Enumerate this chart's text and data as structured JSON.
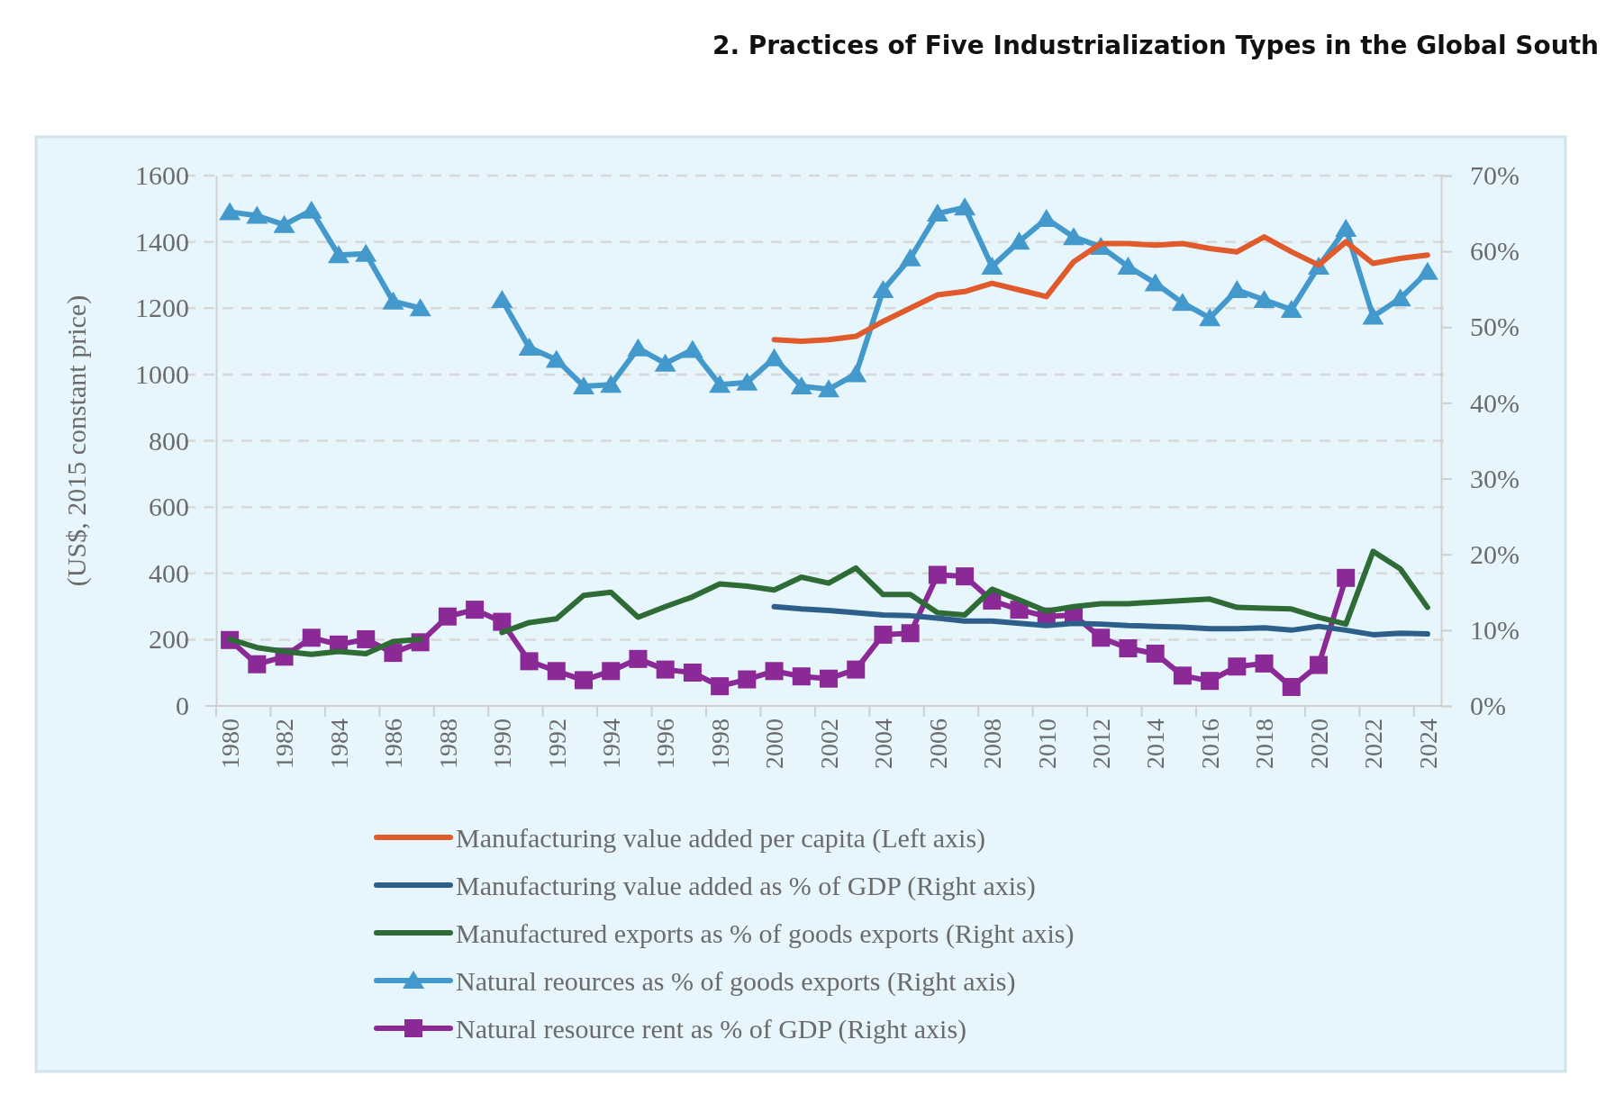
{
  "chart_data": {
    "type": "line",
    "title": "2. Practices of Five Industrialization Types in the Global South",
    "ylabel": "(US$, 2015 constant price)",
    "categories": [
      "1980",
      null,
      "1982",
      null,
      "1984",
      null,
      "1986",
      null,
      "1988",
      null,
      "1990",
      null,
      "1992",
      null,
      "1994",
      null,
      "1996",
      null,
      "1998",
      null,
      "2000",
      null,
      "2002",
      null,
      "2004",
      null,
      "2006",
      null,
      "2008",
      null,
      "2010",
      null,
      "2012",
      null,
      "2014",
      null,
      "2016",
      null,
      "2018",
      null,
      "2020",
      null,
      "2022",
      null,
      "2024"
    ],
    "ylim": [
      0,
      1600
    ],
    "yticks": [
      0,
      200,
      400,
      600,
      800,
      1000,
      1200,
      1400,
      1600
    ],
    "y2lim": [
      0,
      70
    ],
    "y2ticks": [
      {
        "value": 0,
        "label": "0%"
      },
      {
        "value": 10,
        "label": "10%"
      },
      {
        "value": 20,
        "label": "20%"
      },
      {
        "value": 30,
        "label": "30%"
      },
      {
        "value": 40,
        "label": "40%"
      },
      {
        "value": 50,
        "label": "50%"
      },
      {
        "value": 60,
        "label": "60%"
      },
      {
        "value": 70,
        "label": "70%"
      }
    ],
    "grid": "y",
    "legend": "bottom",
    "series": [
      {
        "name": "Manufacturing value added per capita (Left axis)",
        "color": "#e05a2b",
        "marker": "none",
        "values": [
          null,
          null,
          null,
          null,
          null,
          null,
          null,
          null,
          null,
          null,
          null,
          null,
          null,
          null,
          null,
          null,
          null,
          null,
          null,
          null,
          1105,
          1100,
          1105,
          1115,
          1160,
          1200,
          1240,
          1250,
          1275,
          1255,
          1235,
          1340,
          1395,
          1395,
          1390,
          1395,
          1380,
          1370,
          1415,
          1370,
          1330,
          1400,
          1335,
          1350,
          1360
        ]
      },
      {
        "name": "Manufacturing value added as % of GDP (Right axis)",
        "color": "#2e5f8a",
        "marker": "none",
        "axis": "y2",
        "values": [
          null,
          null,
          null,
          null,
          null,
          null,
          null,
          null,
          null,
          null,
          null,
          null,
          null,
          null,
          null,
          null,
          null,
          null,
          null,
          null,
          13.1,
          12.8,
          12.6,
          12.3,
          12.0,
          11.9,
          11.6,
          11.2,
          11.2,
          10.9,
          10.6,
          10.9,
          10.8,
          10.6,
          10.5,
          10.4,
          10.2,
          10.2,
          10.3,
          10.0,
          10.5,
          10.0,
          9.4,
          9.6,
          9.5
        ]
      },
      {
        "name": "Manufactured exports as % of goods exports (Right axis)",
        "color": "#2e6b35",
        "marker": "none",
        "axis": "y2",
        "values": [
          8.8,
          7.7,
          7.2,
          6.8,
          7.2,
          6.9,
          8.5,
          8.8,
          null,
          null,
          9.7,
          11.0,
          11.5,
          14.6,
          15.0,
          11.7,
          13.1,
          14.4,
          16.1,
          15.8,
          15.3,
          17.0,
          16.2,
          18.2,
          14.7,
          14.7,
          12.3,
          12.0,
          15.4,
          14.0,
          12.5,
          13.1,
          13.5,
          13.5,
          13.7,
          13.9,
          14.1,
          13.0,
          12.9,
          12.8,
          11.7,
          10.8,
          20.4,
          18.1,
          13.0
        ]
      },
      {
        "name": "Natural reources as % of goods exports (Right axis)",
        "color": "#4499cc",
        "marker": "triangle",
        "axis": "y2",
        "values": [
          65.2,
          64.7,
          63.5,
          65.4,
          59.5,
          59.7,
          53.4,
          52.5,
          null,
          null,
          53.6,
          47.3,
          45.7,
          42.2,
          42.4,
          47.2,
          45.2,
          47.0,
          42.4,
          42.7,
          45.9,
          42.2,
          41.8,
          43.8,
          54.9,
          59.1,
          65.0,
          65.8,
          58.0,
          61.3,
          64.3,
          61.9,
          60.6,
          58.0,
          55.8,
          53.2,
          51.2,
          54.9,
          53.6,
          52.3,
          58.0,
          63.0,
          51.4,
          53.8,
          57.3
        ]
      },
      {
        "name": "Natural resource rent as % of GDP (Right axis)",
        "color": "#8b2a96",
        "marker": "square",
        "axis": "y2",
        "values": [
          8.7,
          5.5,
          6.5,
          9.0,
          8.1,
          8.8,
          7.0,
          8.4,
          11.8,
          12.7,
          11.1,
          5.9,
          4.6,
          3.4,
          4.6,
          6.2,
          4.8,
          4.4,
          2.6,
          3.5,
          4.6,
          3.9,
          3.6,
          4.8,
          9.4,
          9.6,
          17.3,
          17.1,
          13.9,
          12.7,
          11.8,
          12.0,
          9.0,
          7.6,
          6.9,
          4.0,
          3.3,
          5.2,
          5.6,
          2.5,
          5.4,
          16.9,
          null,
          null,
          null
        ]
      }
    ]
  }
}
